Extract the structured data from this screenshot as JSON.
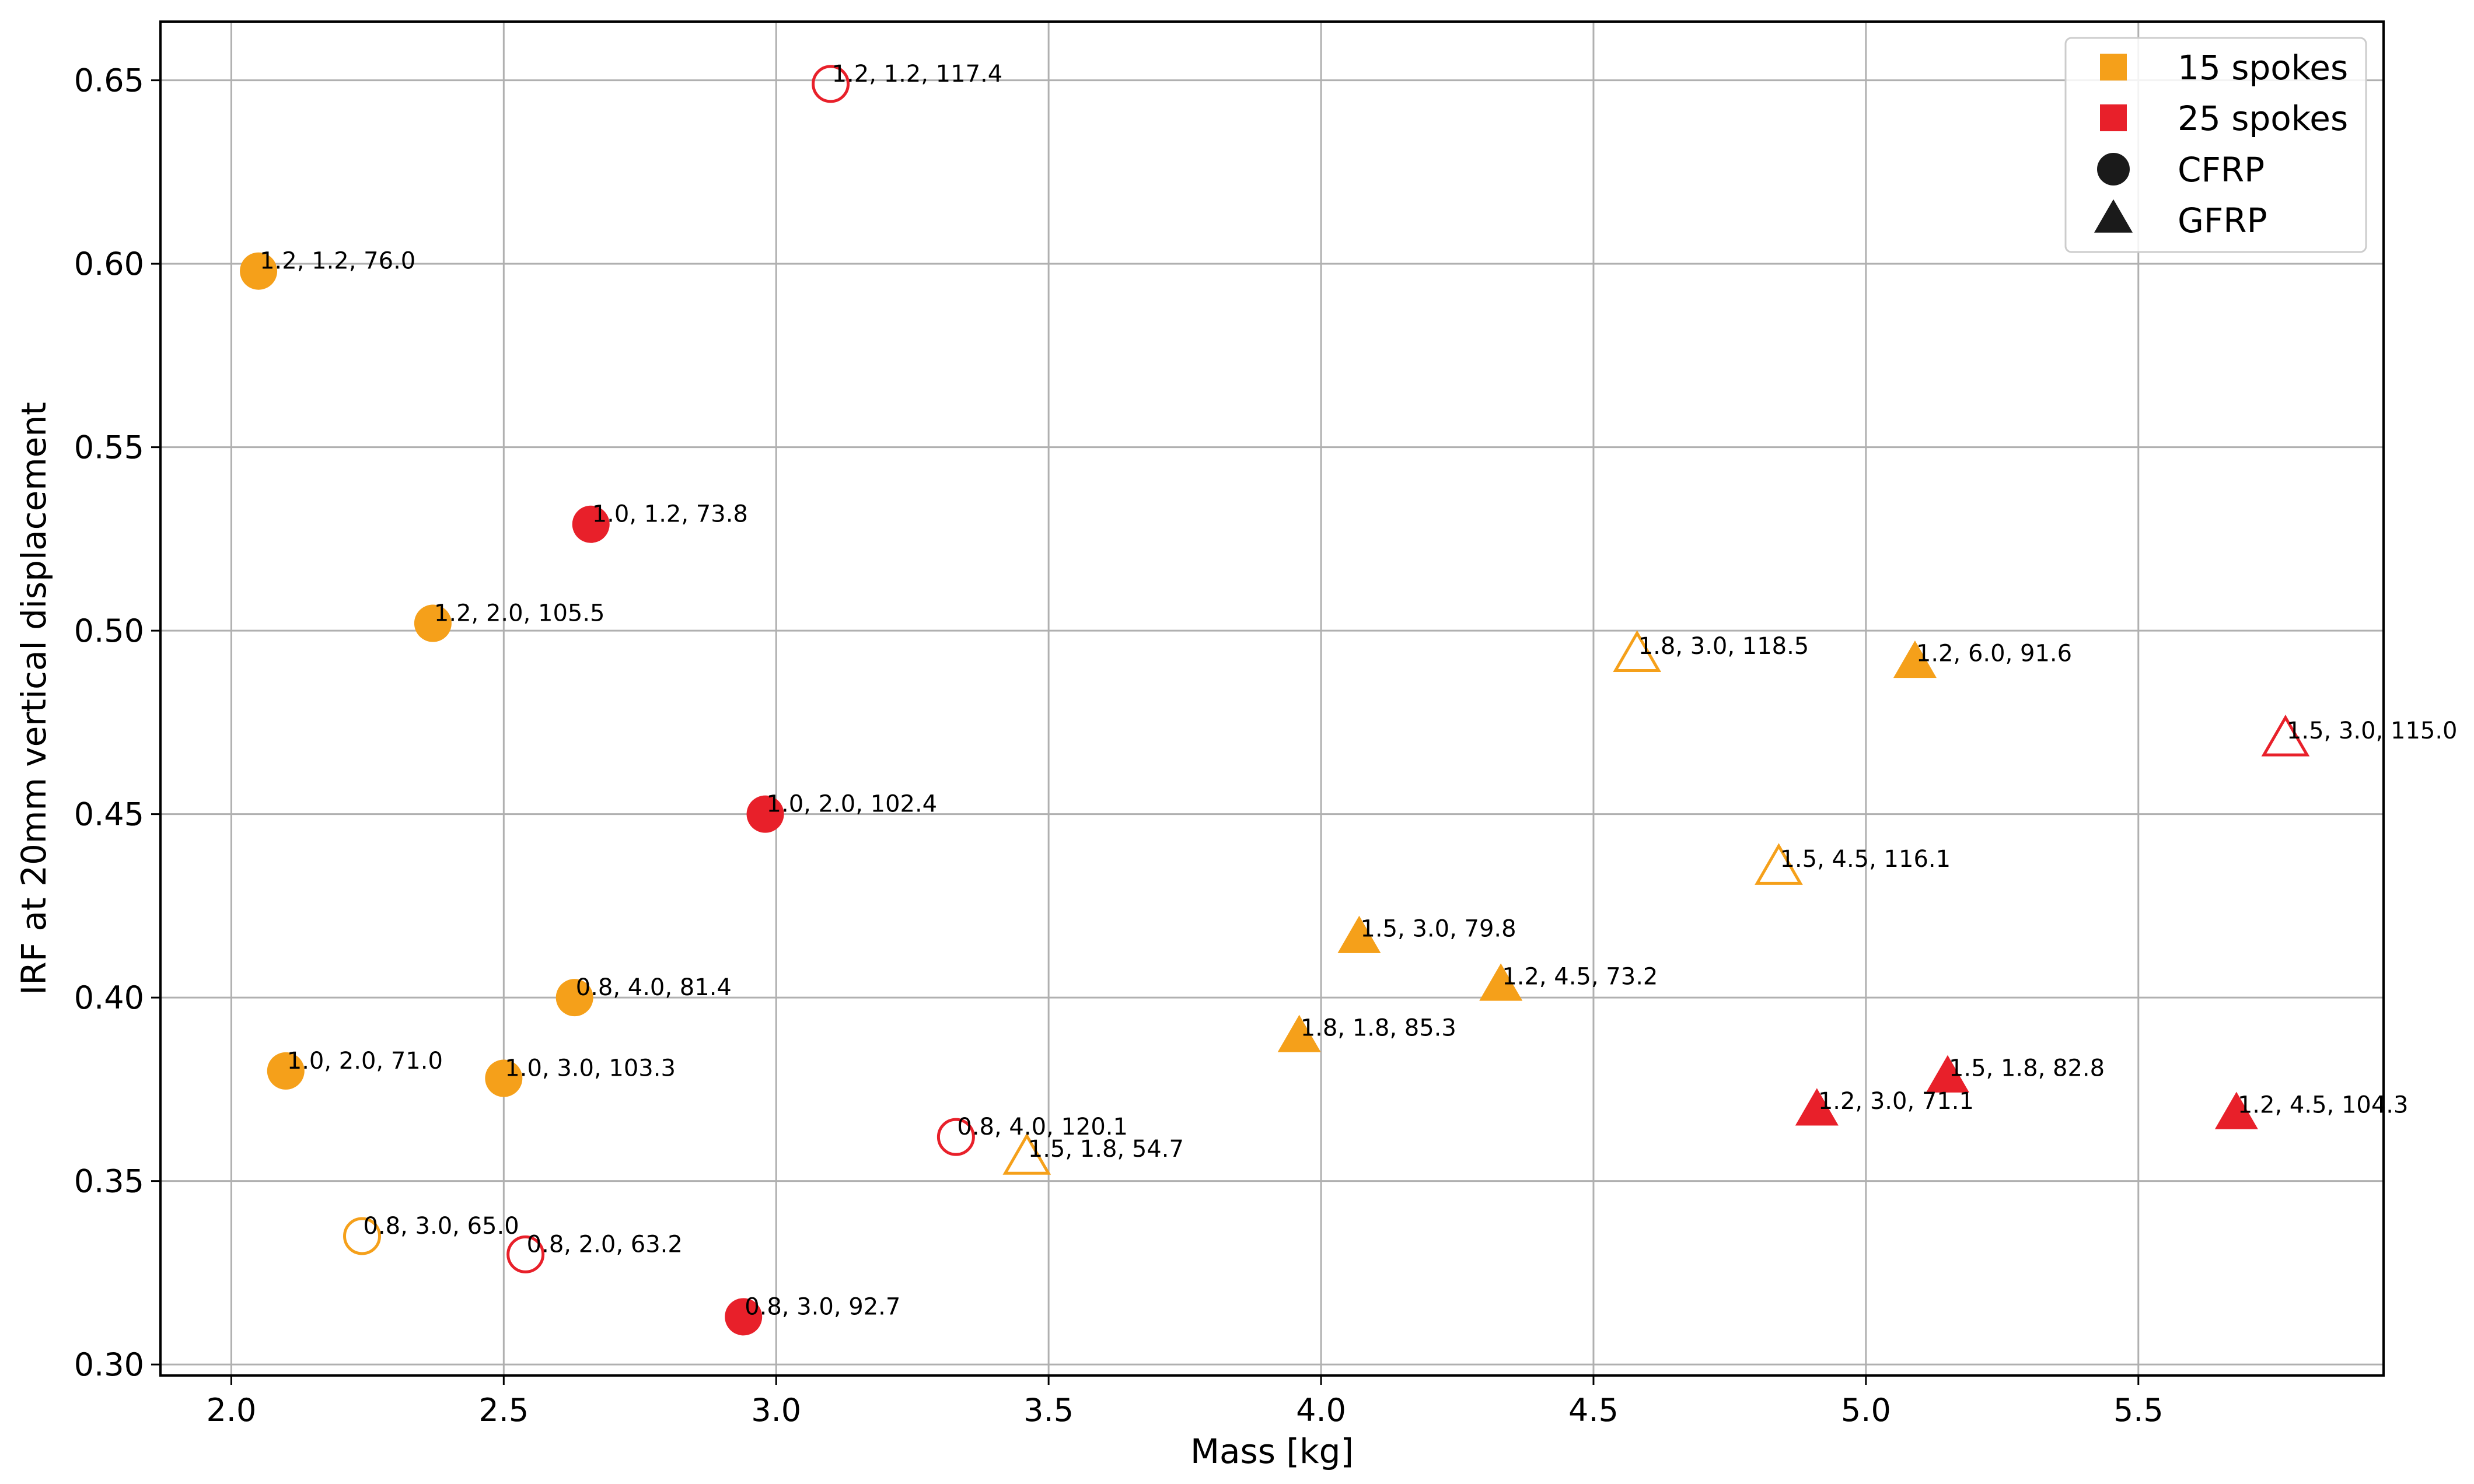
{
  "chart_data": {
    "type": "scatter",
    "title": "",
    "xlabel": "Mass [kg]",
    "ylabel": "IRF at 20mm vertical displacement",
    "xlim": [
      1.87,
      5.95
    ],
    "ylim": [
      0.297,
      0.666
    ],
    "xticks": [
      2.0,
      2.5,
      3.0,
      3.5,
      4.0,
      4.5,
      5.0,
      5.5
    ],
    "xtick_labels": [
      "2.0",
      "2.5",
      "3.0",
      "3.5",
      "4.0",
      "4.5",
      "5.0",
      "5.5"
    ],
    "yticks": [
      0.3,
      0.35,
      0.4,
      0.45,
      0.5,
      0.55,
      0.6,
      0.65
    ],
    "ytick_labels": [
      "0.30",
      "0.35",
      "0.40",
      "0.45",
      "0.50",
      "0.55",
      "0.60",
      "0.65"
    ],
    "grid": true,
    "legend_position": "top-right",
    "colors": {
      "15 spokes": "#f5a01a",
      "25 spokes": "#e8202a",
      "neutral": "#1a1a1a"
    },
    "legend": [
      {
        "label": "15 spokes",
        "shape": "square",
        "color": "#f5a01a"
      },
      {
        "label": "25 spokes",
        "shape": "square",
        "color": "#e8202a"
      },
      {
        "label": "CFRP",
        "shape": "circle",
        "color": "#1a1a1a"
      },
      {
        "label": "GFRP",
        "shape": "triangle",
        "color": "#1a1a1a"
      }
    ],
    "points": [
      {
        "x": 2.05,
        "y": 0.598,
        "spokes": "15",
        "material": "CFRP",
        "filled": true,
        "label": "1.2, 1.2, 76.0"
      },
      {
        "x": 2.37,
        "y": 0.502,
        "spokes": "15",
        "material": "CFRP",
        "filled": true,
        "label": "1.2, 2.0, 105.5"
      },
      {
        "x": 2.63,
        "y": 0.4,
        "spokes": "15",
        "material": "CFRP",
        "filled": true,
        "label": "0.8, 4.0, 81.4"
      },
      {
        "x": 2.1,
        "y": 0.38,
        "spokes": "15",
        "material": "CFRP",
        "filled": true,
        "label": "1.0, 2.0, 71.0"
      },
      {
        "x": 2.5,
        "y": 0.378,
        "spokes": "15",
        "material": "CFRP",
        "filled": true,
        "label": "1.0, 3.0, 103.3"
      },
      {
        "x": 2.24,
        "y": 0.335,
        "spokes": "15",
        "material": "CFRP",
        "filled": false,
        "label": "0.8, 3.0, 65.0"
      },
      {
        "x": 3.1,
        "y": 0.649,
        "spokes": "25",
        "material": "CFRP",
        "filled": false,
        "label": "1.2, 1.2, 117.4"
      },
      {
        "x": 2.66,
        "y": 0.529,
        "spokes": "25",
        "material": "CFRP",
        "filled": true,
        "label": "1.0, 1.2, 73.8"
      },
      {
        "x": 2.98,
        "y": 0.45,
        "spokes": "25",
        "material": "CFRP",
        "filled": true,
        "label": "1.0, 2.0, 102.4"
      },
      {
        "x": 3.33,
        "y": 0.362,
        "spokes": "25",
        "material": "CFRP",
        "filled": false,
        "label": "0.8, 4.0, 120.1"
      },
      {
        "x": 2.54,
        "y": 0.33,
        "spokes": "25",
        "material": "CFRP",
        "filled": false,
        "label": "0.8, 2.0, 63.2"
      },
      {
        "x": 2.94,
        "y": 0.313,
        "spokes": "25",
        "material": "CFRP",
        "filled": true,
        "label": "0.8, 3.0, 92.7"
      },
      {
        "x": 4.58,
        "y": 0.493,
        "spokes": "15",
        "material": "GFRP",
        "filled": false,
        "label": "1.8, 3.0, 118.5"
      },
      {
        "x": 5.09,
        "y": 0.491,
        "spokes": "15",
        "material": "GFRP",
        "filled": true,
        "label": "1.2, 6.0, 91.6"
      },
      {
        "x": 4.84,
        "y": 0.435,
        "spokes": "15",
        "material": "GFRP",
        "filled": false,
        "label": "1.5, 4.5, 116.1"
      },
      {
        "x": 4.07,
        "y": 0.416,
        "spokes": "15",
        "material": "GFRP",
        "filled": true,
        "label": "1.5, 3.0, 79.8"
      },
      {
        "x": 4.33,
        "y": 0.403,
        "spokes": "15",
        "material": "GFRP",
        "filled": true,
        "label": "1.2, 4.5, 73.2"
      },
      {
        "x": 3.96,
        "y": 0.389,
        "spokes": "15",
        "material": "GFRP",
        "filled": true,
        "label": "1.8, 1.8, 85.3"
      },
      {
        "x": 3.46,
        "y": 0.356,
        "spokes": "15",
        "material": "GFRP",
        "filled": false,
        "label": "1.5, 1.8, 54.7"
      },
      {
        "x": 5.77,
        "y": 0.47,
        "spokes": "25",
        "material": "GFRP",
        "filled": false,
        "label": "1.5, 3.0, 115.0"
      },
      {
        "x": 5.15,
        "y": 0.378,
        "spokes": "25",
        "material": "GFRP",
        "filled": true,
        "label": "1.5, 1.8, 82.8"
      },
      {
        "x": 4.91,
        "y": 0.369,
        "spokes": "25",
        "material": "GFRP",
        "filled": true,
        "label": "1.2, 3.0, 71.1"
      },
      {
        "x": 5.68,
        "y": 0.368,
        "spokes": "25",
        "material": "GFRP",
        "filled": true,
        "label": "1.2, 4.5, 104.3"
      }
    ]
  }
}
